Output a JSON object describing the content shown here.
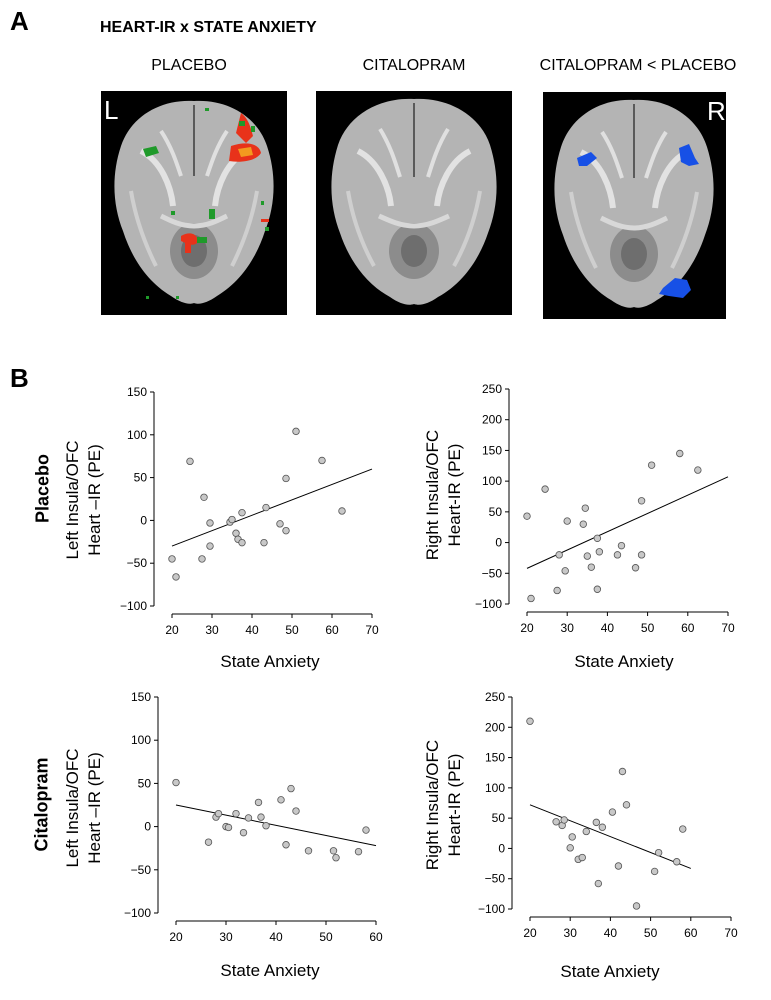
{
  "panel_a": {
    "letter": "A",
    "title": "HEART-IR x STATE ANXIETY",
    "conditions": [
      "PLACEBO",
      "CITALOPRAM",
      "CITALOPRAM < PLACEBO"
    ],
    "left_marker": "L",
    "right_marker": "R",
    "colors": {
      "positive_red": "#e8321a",
      "positive_orange": "#f39a1f",
      "positive_green": "#1f9a2a",
      "negative_blue": "#1750e6",
      "background": "#000000"
    }
  },
  "panel_b": {
    "letter": "B",
    "row_labels": [
      "Placebo",
      "Citalopram"
    ]
  },
  "chart_data": [
    {
      "type": "scatter",
      "xlabel": "State Anxiety",
      "ylabel_lines": [
        "Left Insula/OFC",
        "Heart –IR (PE)"
      ],
      "xlim": [
        20,
        70
      ],
      "ylim": [
        -100,
        150
      ],
      "xticks": [
        "20",
        "30",
        "40",
        "50",
        "60",
        "70"
      ],
      "yticks": [
        "−100",
        "−50",
        "0",
        "50",
        "100",
        "150"
      ],
      "points": [
        [
          20,
          -45
        ],
        [
          21,
          -66
        ],
        [
          24.5,
          69
        ],
        [
          28,
          27
        ],
        [
          27.5,
          -45
        ],
        [
          29.5,
          -3
        ],
        [
          29.5,
          -30
        ],
        [
          34.5,
          -2
        ],
        [
          35,
          1
        ],
        [
          36,
          -15
        ],
        [
          36.5,
          -22
        ],
        [
          37.5,
          9
        ],
        [
          37.5,
          -26
        ],
        [
          43,
          -26
        ],
        [
          43.5,
          15
        ],
        [
          47,
          -4
        ],
        [
          48.5,
          -12
        ],
        [
          48.5,
          49
        ],
        [
          51,
          104
        ],
        [
          57.5,
          70
        ],
        [
          62.5,
          11
        ]
      ],
      "fit": [
        [
          20,
          -30
        ],
        [
          70,
          60
        ]
      ],
      "color": "#c8c8c8"
    },
    {
      "type": "scatter",
      "xlabel": "State Anxiety",
      "ylabel_lines": [
        "Right Insula/OFC",
        "Heart-IR (PE)"
      ],
      "xlim": [
        20,
        70
      ],
      "ylim": [
        -100,
        250
      ],
      "xticks": [
        "20",
        "30",
        "40",
        "50",
        "60",
        "70"
      ],
      "yticks": [
        "−100",
        "−50",
        "0",
        "50",
        "100",
        "150",
        "200",
        "250"
      ],
      "points": [
        [
          20,
          43
        ],
        [
          21,
          -91
        ],
        [
          24.5,
          87
        ],
        [
          27.5,
          -78
        ],
        [
          28,
          -20
        ],
        [
          29.5,
          -46
        ],
        [
          30,
          35
        ],
        [
          34,
          30
        ],
        [
          34.5,
          56
        ],
        [
          35,
          -22
        ],
        [
          36,
          -40
        ],
        [
          37.5,
          7
        ],
        [
          37.5,
          -76
        ],
        [
          38,
          -15
        ],
        [
          42.5,
          -20
        ],
        [
          43.5,
          -5
        ],
        [
          47,
          -41
        ],
        [
          48.5,
          -20
        ],
        [
          48.5,
          68
        ],
        [
          51,
          126
        ],
        [
          58,
          145
        ],
        [
          62.5,
          118
        ]
      ],
      "fit": [
        [
          20,
          -42
        ],
        [
          70,
          107
        ]
      ],
      "color": "#c8c8c8"
    },
    {
      "type": "scatter",
      "xlabel": "State Anxiety",
      "ylabel_lines": [
        "Left Insula/OFC",
        "Heart –IR (PE)"
      ],
      "xlim": [
        20,
        60
      ],
      "ylim": [
        -100,
        150
      ],
      "xticks": [
        "20",
        "30",
        "40",
        "50",
        "60"
      ],
      "yticks": [
        "−100",
        "−50",
        "0",
        "50",
        "100",
        "150"
      ],
      "points": [
        [
          20,
          51
        ],
        [
          26.5,
          -18
        ],
        [
          28,
          11
        ],
        [
          28.5,
          15
        ],
        [
          30,
          0
        ],
        [
          30.5,
          -1
        ],
        [
          32,
          15
        ],
        [
          33.5,
          -7
        ],
        [
          34.5,
          10
        ],
        [
          36.5,
          28
        ],
        [
          37,
          11
        ],
        [
          38,
          1
        ],
        [
          41,
          31
        ],
        [
          42,
          -21
        ],
        [
          43,
          44
        ],
        [
          44,
          18
        ],
        [
          46.5,
          -28
        ],
        [
          51.5,
          -28
        ],
        [
          52,
          -36
        ],
        [
          56.5,
          -29
        ],
        [
          58,
          -4
        ]
      ],
      "fit": [
        [
          20,
          25
        ],
        [
          60,
          -22
        ]
      ],
      "color": "#c8c8c8"
    },
    {
      "type": "scatter",
      "xlabel": "State Anxiety",
      "ylabel_lines": [
        "Right Insula/OFC",
        "Heart-IR (PE)"
      ],
      "xlim": [
        20,
        70
      ],
      "ylim": [
        -100,
        250
      ],
      "xticks": [
        "20",
        "30",
        "40",
        "50",
        "60",
        "70"
      ],
      "yticks": [
        "−100",
        "−50",
        "0",
        "50",
        "100",
        "150",
        "200",
        "250"
      ],
      "points": [
        [
          20,
          210
        ],
        [
          26.5,
          44
        ],
        [
          28,
          38
        ],
        [
          28.5,
          47
        ],
        [
          30,
          1
        ],
        [
          30.5,
          19
        ],
        [
          32,
          -18
        ],
        [
          33,
          -15
        ],
        [
          34,
          28
        ],
        [
          36.5,
          43
        ],
        [
          37,
          -58
        ],
        [
          38,
          35
        ],
        [
          40.5,
          60
        ],
        [
          42,
          -29
        ],
        [
          43,
          127
        ],
        [
          44,
          72
        ],
        [
          46.5,
          -95
        ],
        [
          51,
          -38
        ],
        [
          52,
          -7
        ],
        [
          56.5,
          -22
        ],
        [
          58,
          32
        ]
      ],
      "fit": [
        [
          20,
          72
        ],
        [
          60,
          -33
        ]
      ],
      "color": "#c8c8c8"
    }
  ]
}
